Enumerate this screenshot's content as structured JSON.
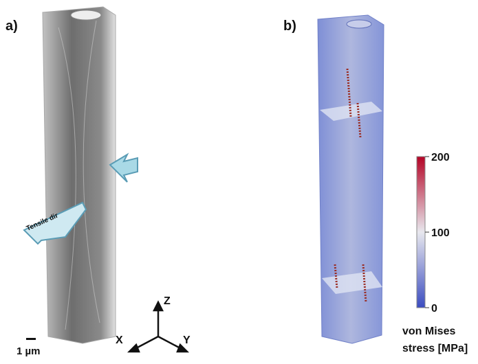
{
  "panels": [
    {
      "label": "a)",
      "annotation": "Tensile dir",
      "scale_bar": "1 µm",
      "axes": {
        "z": "Z",
        "x": "X",
        "y": "Y"
      }
    },
    {
      "label": "b)",
      "colorbar": {
        "title": [
          "von Mises",
          "stress [MPa]"
        ],
        "lim": [
          0,
          200
        ],
        "ticks": [
          0,
          100,
          200
        ]
      }
    }
  ]
}
